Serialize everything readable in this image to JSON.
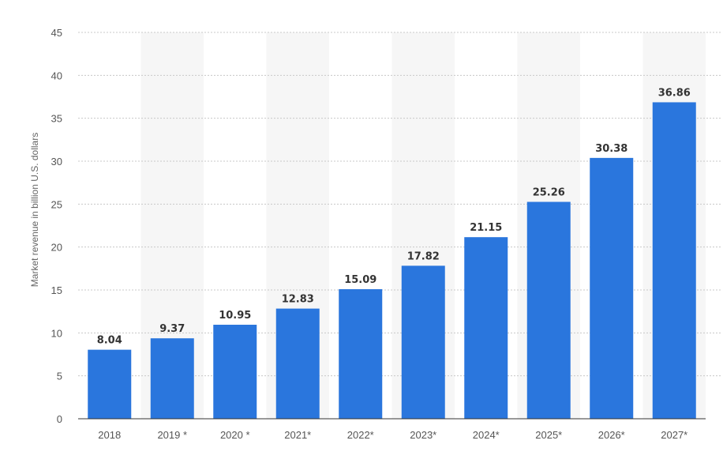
{
  "chart_data": {
    "type": "bar",
    "categories": [
      "2018",
      "2019 *",
      "2020 *",
      "2021*",
      "2022*",
      "2023*",
      "2024*",
      "2025*",
      "2026*",
      "2027*"
    ],
    "values": [
      8.04,
      9.37,
      10.95,
      12.83,
      15.09,
      17.82,
      21.15,
      25.26,
      30.38,
      36.86
    ],
    "value_labels": [
      "8.04",
      "9.37",
      "10.95",
      "12.83",
      "15.09",
      "17.82",
      "21.15",
      "25.26",
      "30.38",
      "36.86"
    ],
    "title": "",
    "xlabel": "",
    "ylabel": "Market revenue in billion U.S. dollars",
    "ylim": [
      0,
      45
    ],
    "yticks": [
      0,
      5,
      10,
      15,
      20,
      25,
      30,
      35,
      40,
      45
    ],
    "grid": true,
    "legend": "none",
    "colors": {
      "bar": "#2a76dd",
      "grid": "#c8c8c8",
      "band": "#f6f6f6",
      "axis": "#333333"
    }
  }
}
